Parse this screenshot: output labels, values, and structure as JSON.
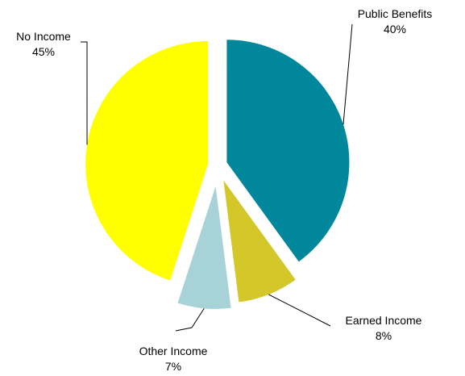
{
  "chart_data": {
    "type": "pie",
    "title": "",
    "exploded": true,
    "start_angle_deg": 0,
    "direction": "clockwise",
    "slices": [
      {
        "label": "Public Benefits",
        "value": 40,
        "value_label": "40%",
        "color": "#00879B"
      },
      {
        "label": "Earned Income",
        "value": 8,
        "value_label": "8%",
        "color": "#D4C72A"
      },
      {
        "label": "Other Income",
        "value": 7,
        "value_label": "7%",
        "color": "#A6D2D8"
      },
      {
        "label": "No Income",
        "value": 45,
        "value_label": "45%",
        "color": "#FFFF00"
      }
    ],
    "legend": "none",
    "data_labels": "outside-with-leader-lines"
  }
}
